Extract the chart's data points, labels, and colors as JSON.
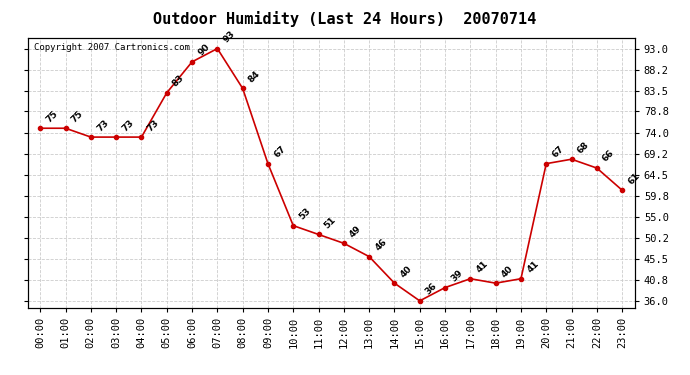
{
  "title": "Outdoor Humidity (Last 24 Hours)  20070714",
  "copyright_text": "Copyright 2007 Cartronics.com",
  "hours": [
    0,
    1,
    2,
    3,
    4,
    5,
    6,
    7,
    8,
    9,
    10,
    11,
    12,
    13,
    14,
    15,
    16,
    17,
    18,
    19,
    20,
    21,
    22,
    23
  ],
  "x_labels": [
    "00:00",
    "01:00",
    "02:00",
    "03:00",
    "04:00",
    "05:00",
    "06:00",
    "07:00",
    "08:00",
    "09:00",
    "10:00",
    "11:00",
    "12:00",
    "13:00",
    "14:00",
    "15:00",
    "16:00",
    "17:00",
    "18:00",
    "19:00",
    "20:00",
    "21:00",
    "22:00",
    "23:00"
  ],
  "values": [
    75,
    75,
    73,
    73,
    73,
    83,
    90,
    93,
    84,
    67,
    53,
    51,
    49,
    46,
    40,
    36,
    39,
    41,
    40,
    41,
    67,
    68,
    66,
    61
  ],
  "line_color": "#cc0000",
  "marker_color": "#cc0000",
  "bg_color": "#ffffff",
  "plot_bg_color": "#ffffff",
  "grid_color": "#cccccc",
  "title_fontsize": 11,
  "tick_fontsize": 7.5,
  "yticks": [
    36.0,
    40.8,
    45.5,
    50.2,
    55.0,
    59.8,
    64.5,
    69.2,
    74.0,
    78.8,
    83.5,
    88.2,
    93.0
  ],
  "ylim": [
    34.5,
    95.5
  ],
  "xlim": [
    -0.5,
    23.5
  ],
  "annotation_fontsize": 6.5
}
